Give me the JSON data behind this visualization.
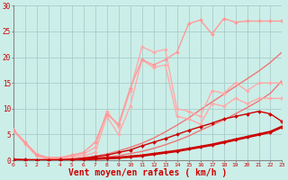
{
  "background_color": "#cceee8",
  "grid_color": "#aacccc",
  "xlabel": "Vent moyen/en rafales ( km/h )",
  "xlabel_color": "#cc0000",
  "xlabel_fontsize": 7,
  "tick_color": "#cc0000",
  "yticks": [
    0,
    5,
    10,
    15,
    20,
    25,
    30
  ],
  "xticks": [
    0,
    1,
    2,
    3,
    4,
    5,
    6,
    7,
    8,
    9,
    10,
    11,
    12,
    13,
    14,
    15,
    16,
    17,
    18,
    19,
    20,
    21,
    22,
    23
  ],
  "xlim": [
    0,
    23
  ],
  "ylim": [
    0,
    30
  ],
  "lines": [
    {
      "x": [
        0,
        1,
        2,
        3,
        4,
        5,
        6,
        7,
        8,
        9,
        10,
        11,
        12,
        13,
        14,
        15,
        16,
        17,
        18,
        19,
        20,
        21,
        22,
        23
      ],
      "y": [
        0.0,
        0.0,
        0.0,
        0.0,
        0.0,
        0.0,
        0.2,
        0.3,
        0.4,
        0.5,
        0.7,
        0.9,
        1.2,
        1.5,
        1.8,
        2.2,
        2.6,
        3.0,
        3.5,
        4.0,
        4.5,
        5.0,
        5.5,
        6.5
      ],
      "color": "#cc0000",
      "linewidth": 2.0,
      "marker": "D",
      "markersize": 2.0,
      "zorder": 5
    },
    {
      "x": [
        0,
        1,
        2,
        3,
        4,
        5,
        6,
        7,
        8,
        9,
        10,
        11,
        12,
        13,
        14,
        15,
        16,
        17,
        18,
        19,
        20,
        21,
        22,
        23
      ],
      "y": [
        0.2,
        0.1,
        0.0,
        0.0,
        0.1,
        0.2,
        0.4,
        0.7,
        1.0,
        1.5,
        2.0,
        2.8,
        3.5,
        4.2,
        5.0,
        5.8,
        6.5,
        7.2,
        8.0,
        8.5,
        9.0,
        9.5,
        9.0,
        7.5
      ],
      "color": "#cc0000",
      "linewidth": 1.0,
      "marker": "D",
      "markersize": 2.0,
      "zorder": 4
    },
    {
      "x": [
        0,
        1,
        2,
        3,
        4,
        5,
        6,
        7,
        8,
        9,
        10,
        11,
        12,
        13,
        14,
        15,
        16,
        17,
        18,
        19,
        20,
        21,
        22,
        23
      ],
      "y": [
        0.0,
        0.0,
        0.0,
        0.0,
        0.0,
        0.1,
        0.2,
        0.4,
        0.6,
        0.9,
        1.3,
        1.7,
        2.3,
        3.0,
        3.8,
        4.7,
        5.8,
        6.8,
        7.8,
        9.0,
        10.2,
        11.5,
        13.0,
        15.5
      ],
      "color": "#ee7777",
      "linewidth": 1.0,
      "marker": null,
      "markersize": 0,
      "zorder": 2
    },
    {
      "x": [
        0,
        1,
        2,
        3,
        4,
        5,
        6,
        7,
        8,
        9,
        10,
        11,
        12,
        13,
        14,
        15,
        16,
        17,
        18,
        19,
        20,
        21,
        22,
        23
      ],
      "y": [
        0.0,
        0.0,
        0.0,
        0.0,
        0.0,
        0.2,
        0.4,
        0.8,
        1.2,
        1.8,
        2.5,
        3.3,
        4.3,
        5.5,
        6.8,
        8.2,
        9.8,
        11.3,
        12.8,
        14.3,
        15.8,
        17.3,
        19.0,
        21.0
      ],
      "color": "#ee7777",
      "linewidth": 1.0,
      "marker": null,
      "markersize": 0,
      "zorder": 2
    },
    {
      "x": [
        0,
        1,
        2,
        3,
        4,
        5,
        6,
        7,
        8,
        9,
        10,
        11,
        12,
        13,
        14,
        15,
        16,
        17,
        18,
        19,
        20,
        21,
        22,
        23
      ],
      "y": [
        5.8,
        3.2,
        0.8,
        0.2,
        0.3,
        0.5,
        0.8,
        1.5,
        8.5,
        5.0,
        10.5,
        19.5,
        18.0,
        18.5,
        8.5,
        8.0,
        7.0,
        11.0,
        10.5,
        12.0,
        11.0,
        12.0,
        12.0,
        12.0
      ],
      "color": "#ffaaaa",
      "linewidth": 1.0,
      "marker": "D",
      "markersize": 2.0,
      "zorder": 3
    },
    {
      "x": [
        0,
        1,
        2,
        3,
        4,
        5,
        6,
        7,
        8,
        9,
        10,
        11,
        12,
        13,
        14,
        15,
        16,
        17,
        18,
        19,
        20,
        21,
        22,
        23
      ],
      "y": [
        6.0,
        3.5,
        1.2,
        0.5,
        0.5,
        0.8,
        1.2,
        2.5,
        9.5,
        6.5,
        13.5,
        22.0,
        21.0,
        21.5,
        10.0,
        9.5,
        8.5,
        13.5,
        13.0,
        15.0,
        13.5,
        15.0,
        15.0,
        15.0
      ],
      "color": "#ffaaaa",
      "linewidth": 1.0,
      "marker": "D",
      "markersize": 2.0,
      "zorder": 3
    },
    {
      "x": [
        0,
        1,
        2,
        3,
        4,
        5,
        6,
        7,
        8,
        9,
        10,
        11,
        12,
        13,
        14,
        15,
        16,
        17,
        18,
        19,
        20,
        21,
        22,
        23
      ],
      "y": [
        5.8,
        3.5,
        1.0,
        0.5,
        0.5,
        1.0,
        1.5,
        3.5,
        9.0,
        7.0,
        14.0,
        19.5,
        18.5,
        19.5,
        21.0,
        26.5,
        27.2,
        24.5,
        27.5,
        26.8,
        27.0,
        27.0,
        27.0,
        27.0
      ],
      "color": "#ff9999",
      "linewidth": 1.0,
      "marker": "D",
      "markersize": 2.0,
      "zorder": 3
    }
  ]
}
